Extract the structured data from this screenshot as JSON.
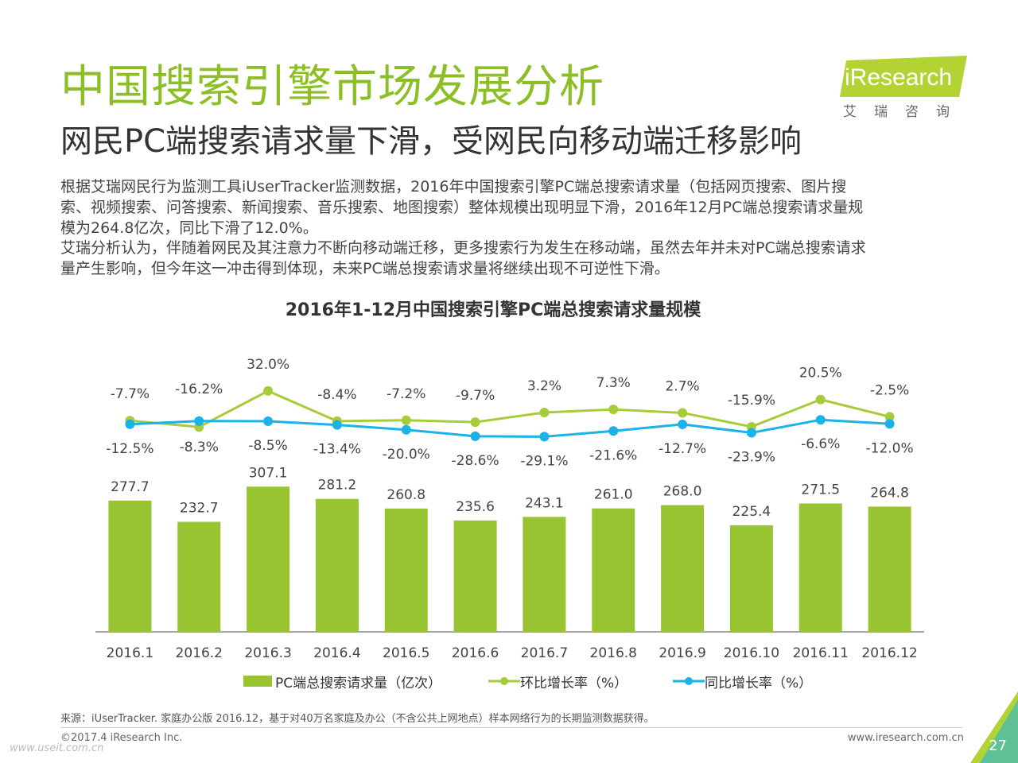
{
  "header": {
    "title": "中国搜索引擎市场发展分析",
    "subtitle": "网民PC端搜索请求量下滑，受网民向移动端迁移影响"
  },
  "logo": {
    "brand": "iResearch",
    "sub": "艾瑞咨询"
  },
  "body": {
    "para1_line1": "根据艾瑞网民行为监测工具iUserTracker监测数据，2016年中国搜索引擎PC端总搜索请求量（包括网页搜索、图片搜",
    "para1_line2": "索、视频搜索、问答搜索、新闻搜索、音乐搜索、地图搜索）整体规模出现明显下滑，2016年12月PC端总搜索请求量规",
    "para1_line3": "模为264.8亿次，同比下滑了12.0%。",
    "para2_line1": "艾瑞分析认为，伴随着网民及其注意力不断向移动端迁移，更多搜索行为发生在移动端，虽然去年并未对PC端总搜索请求",
    "para2_line2": "量产生影响，但今年这一冲击得到体现，未来PC端总搜索请求量将继续出现不可逆性下滑。"
  },
  "chart_data": {
    "type": "bar",
    "title": "2016年1-12月中国搜索引擎PC端总搜索请求量规模",
    "categories": [
      "2016.1",
      "2016.2",
      "2016.3",
      "2016.4",
      "2016.5",
      "2016.6",
      "2016.7",
      "2016.8",
      "2016.9",
      "2016.10",
      "2016.11",
      "2016.12"
    ],
    "series": [
      {
        "name": "PC端总搜索请求量（亿次）",
        "type": "bar",
        "color": "#99c431",
        "values": [
          277.7,
          232.7,
          307.1,
          281.2,
          260.8,
          235.6,
          243.1,
          261.0,
          268.0,
          225.4,
          271.5,
          264.8
        ],
        "labels": [
          "277.7",
          "232.7",
          "307.1",
          "281.2",
          "260.8",
          "235.6",
          "243.1",
          "261.0",
          "268.0",
          "225.4",
          "271.5",
          "264.8"
        ]
      },
      {
        "name": "环比增长率（%）",
        "type": "line",
        "color": "#a6cc3a",
        "values": [
          -7.7,
          -16.2,
          32.0,
          -8.4,
          -7.2,
          -9.7,
          3.2,
          7.3,
          2.7,
          -15.9,
          20.5,
          -2.5
        ],
        "labels": [
          "-7.7%",
          "-16.2%",
          "32.0%",
          "-8.4%",
          "-7.2%",
          "-9.7%",
          "3.2%",
          "7.3%",
          "2.7%",
          "-15.9%",
          "20.5%",
          "-2.5%"
        ]
      },
      {
        "name": "同比增长率（%）",
        "type": "line",
        "color": "#1ab2e8",
        "values": [
          -12.5,
          -8.3,
          -8.5,
          -13.4,
          -20.0,
          -28.6,
          -29.1,
          -21.6,
          -12.7,
          -23.9,
          -6.6,
          -12.0
        ],
        "labels": [
          "-12.5%",
          "-8.3%",
          "-8.5%",
          "-13.4%",
          "-20.0%",
          "-28.6%",
          "-29.1%",
          "-21.6%",
          "-12.7%",
          "-23.9%",
          "-6.6%",
          "-12.0%"
        ]
      }
    ],
    "legend_position": "bottom",
    "grid": false
  },
  "footer": {
    "source": "来源：iUserTracker. 家庭办公版 2016.12，基于对40万名家庭及办公（不含公共上网地点）样本网络行为的长期监测数据获得。",
    "copyright": "©2017.4 iResearch Inc.",
    "website": "www.iresearch.com.cn",
    "watermark": "www.useit.com.cn",
    "page": "27"
  },
  "colors": {
    "brand_green": "#8cbf26",
    "bar_green": "#99c431",
    "line_green": "#a6cc3a",
    "line_blue": "#1ab2e8"
  }
}
